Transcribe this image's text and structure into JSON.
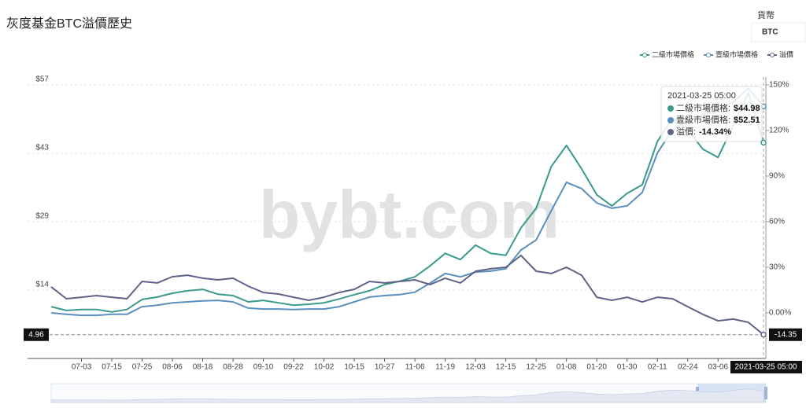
{
  "header": {
    "title": "灰度基金BTC溢價歷史",
    "currency_label": "貨幣",
    "currency_value": "BTC",
    "watermark": "bybt.com"
  },
  "chart_data": {
    "type": "line",
    "categories": [
      null,
      null,
      "07-03",
      null,
      "07-15",
      null,
      "07-25",
      null,
      "08-06",
      null,
      "08-18",
      null,
      "08-28",
      null,
      "09-10",
      null,
      "09-22",
      null,
      "10-02",
      null,
      "10-15",
      null,
      "10-27",
      null,
      "11-06",
      null,
      "11-19",
      null,
      "12-03",
      null,
      "12-15",
      null,
      "12-25",
      null,
      "01-08",
      null,
      "01-20",
      null,
      "01-30",
      null,
      "02-11",
      null,
      "02-24",
      null,
      "03-06",
      null,
      null,
      "2021-03-25 05:00"
    ],
    "series": [
      {
        "name": "二級市場價格",
        "color": "#3a9a8c",
        "values": [
          10.8,
          10.0,
          10.2,
          10.2,
          9.7,
          10.2,
          12.3,
          12.8,
          13.6,
          14.1,
          14.4,
          13.4,
          13.1,
          11.8,
          12.1,
          11.6,
          11.1,
          11.3,
          11.6,
          12.4,
          13.3,
          14.1,
          15.4,
          16.1,
          17.0,
          19.3,
          21.9,
          20.6,
          23.6,
          21.9,
          21.5,
          27.2,
          31.3,
          40.0,
          44.4,
          39.5,
          34.1,
          31.8,
          34.4,
          36.2,
          45.2,
          50.1,
          47.7,
          43.6,
          41.9,
          48.5,
          55.4,
          44.98
        ]
      },
      {
        "name": "壹級市場價格",
        "color": "#5b8fbd",
        "values": [
          9.5,
          9.2,
          9.0,
          9.0,
          9.2,
          9.2,
          10.8,
          11.1,
          11.6,
          11.8,
          12.0,
          12.1,
          11.8,
          10.5,
          10.3,
          10.3,
          10.2,
          10.3,
          10.3,
          10.8,
          11.8,
          12.8,
          13.1,
          13.3,
          13.8,
          15.7,
          17.7,
          17.0,
          18.0,
          18.2,
          18.7,
          22.6,
          24.7,
          30.8,
          36.7,
          35.4,
          32.4,
          31.3,
          31.8,
          34.6,
          42.8,
          47.7,
          49.3,
          50.9,
          51.8,
          53.4,
          56.3,
          52.51
        ]
      },
      {
        "name": "溢價",
        "color": "#5f6386",
        "axis": "y2",
        "values": [
          17.1,
          9.3,
          10.3,
          11.4,
          10.3,
          9.3,
          20.7,
          19.7,
          23.8,
          24.8,
          22.8,
          21.7,
          22.8,
          17.6,
          13.4,
          12.4,
          10.3,
          8.3,
          10.3,
          13.4,
          15.5,
          20.7,
          19.7,
          20.7,
          21.7,
          18.6,
          22.8,
          19.7,
          27.4,
          29.0,
          30.0,
          37.8,
          27.4,
          25.9,
          30.0,
          24.8,
          10.3,
          8.3,
          10.3,
          7.2,
          10.3,
          9.3,
          4.1,
          -1.0,
          -5.2,
          -4.1,
          -6.2,
          -14.34
        ]
      }
    ],
    "ylim": [
      0,
      57
    ],
    "yticks": [
      {
        "value": 14.25,
        "label": "$14"
      },
      {
        "value": 28.5,
        "label": "$29"
      },
      {
        "value": 42.75,
        "label": "$43"
      },
      {
        "value": 57,
        "label": "$57"
      }
    ],
    "y2lim": [
      -30,
      150
    ],
    "y2ticks": [
      {
        "value": 0,
        "label": "0.00%"
      },
      {
        "value": 30,
        "label": "30%"
      },
      {
        "value": 60,
        "label": "60%"
      },
      {
        "value": 90,
        "label": "90%"
      },
      {
        "value": 120,
        "label": "120%"
      },
      {
        "value": 150,
        "label": "150%"
      }
    ],
    "grid": true,
    "legend": "top-right",
    "crosshair": {
      "y": 4.96,
      "y2": -14.35
    },
    "tooltip": {
      "value_labels": [
        "$44.98",
        "$52.51",
        "-14.34%"
      ]
    }
  }
}
